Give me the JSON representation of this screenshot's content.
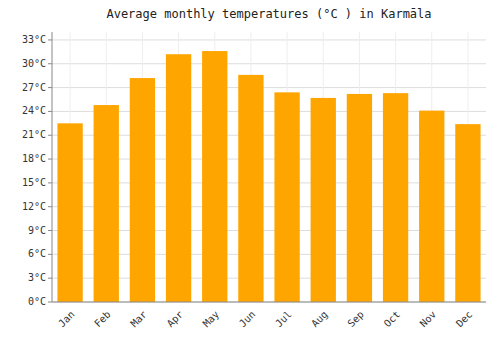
{
  "chart_data": {
    "type": "bar",
    "title": "Average monthly temperatures (°C ) in Karmāla",
    "categories": [
      "Jan",
      "Feb",
      "Mar",
      "Apr",
      "May",
      "Jun",
      "Jul",
      "Aug",
      "Sep",
      "Oct",
      "Nov",
      "Dec"
    ],
    "values": [
      22.5,
      24.8,
      28.2,
      31.2,
      31.6,
      28.6,
      26.4,
      25.7,
      26.2,
      26.3,
      24.1,
      22.4
    ],
    "color": "#FFA500",
    "ylim": [
      0,
      34
    ],
    "yticks": [
      {
        "value": 0,
        "label": "0°C"
      },
      {
        "value": 3,
        "label": "3°C"
      },
      {
        "value": 6,
        "label": "6°C"
      },
      {
        "value": 9,
        "label": "9°C"
      },
      {
        "value": 12,
        "label": "12°C"
      },
      {
        "value": 15,
        "label": "15°C"
      },
      {
        "value": 18,
        "label": "18°C"
      },
      {
        "value": 21,
        "label": "21°C"
      },
      {
        "value": 24,
        "label": "24°C"
      },
      {
        "value": 27,
        "label": "27°C"
      },
      {
        "value": 30,
        "label": "30°C"
      },
      {
        "value": 33,
        "label": "33°C"
      }
    ],
    "grid": true
  }
}
